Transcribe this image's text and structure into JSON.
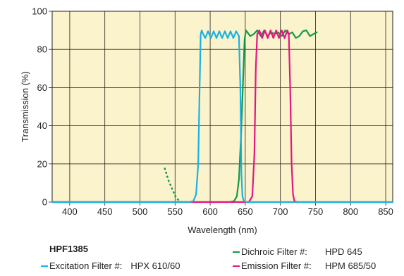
{
  "chart_data": {
    "type": "line",
    "xlabel": "Wavelength (nm)",
    "ylabel": "Transmission (%)",
    "xlim": [
      375,
      860
    ],
    "ylim": [
      0,
      100
    ],
    "xticks": [
      400,
      450,
      500,
      550,
      600,
      650,
      700,
      750,
      800,
      850
    ],
    "yticks": [
      0,
      20,
      40,
      60,
      80,
      100
    ],
    "grid": true,
    "background_color": "#fbf3cc",
    "grid_color": "#231f20",
    "series": [
      {
        "name": "Excitation Filter #: HPX 610/60",
        "color": "#1ab1e4",
        "x": [
          375,
          570,
          576,
          580,
          583,
          585,
          586.5,
          588,
          590,
          593,
          597,
          601,
          605,
          609,
          613,
          617,
          621,
          625,
          629,
          633,
          637,
          641,
          643,
          644.5,
          646,
          648,
          652,
          860
        ],
        "y": [
          0,
          0,
          0.5,
          4,
          20,
          60,
          88,
          90,
          88,
          86,
          89.5,
          86,
          89.5,
          86,
          89.5,
          86,
          89.5,
          86,
          89.5,
          86,
          89.5,
          87,
          60,
          15,
          3,
          0.5,
          0,
          0
        ]
      },
      {
        "name": "Dichroic Filter #: HPD 645",
        "color": "#159848",
        "dashed_segment": {
          "x": [
            535,
            541,
            547,
            551,
            555,
            559
          ],
          "y": [
            18,
            11,
            6,
            2.5,
            1,
            0
          ]
        },
        "x": [
          375,
          628,
          634,
          638,
          641,
          644,
          647,
          649,
          651,
          653,
          657,
          662,
          667,
          672,
          677,
          682,
          687,
          692,
          697,
          702,
          707,
          712,
          717,
          722,
          727,
          732,
          737,
          742,
          747,
          752
        ],
        "y": [
          0,
          0,
          0.5,
          3,
          12,
          35,
          65,
          85,
          90,
          89,
          87,
          88,
          90,
          87,
          90,
          87,
          89,
          88,
          89,
          87,
          90,
          88,
          89,
          86,
          87,
          89.5,
          90,
          87,
          88,
          89
        ]
      },
      {
        "name": "Emission Filter #: HPM 685/50",
        "color": "#e6157f",
        "x": [
          375,
          655,
          660,
          663,
          665,
          667,
          670,
          674,
          678,
          682,
          686,
          690,
          694,
          698,
          702,
          706,
          710,
          712,
          714,
          716,
          718,
          720,
          724,
          860
        ],
        "y": [
          0,
          0,
          3,
          25,
          70,
          88,
          90,
          86,
          90,
          86,
          90,
          86,
          90,
          86,
          90,
          86,
          90,
          88,
          60,
          20,
          4,
          0.5,
          0,
          0
        ]
      }
    ]
  },
  "legend": {
    "product_code": "HPF1385",
    "excitation": {
      "label": "Excitation Filter #:",
      "value": "HPX  610/60",
      "color": "#1ab1e4"
    },
    "dichroic": {
      "label": "Dichroic Filter #:",
      "value": "HPD  645",
      "color": "#159848"
    },
    "emission": {
      "label": "Emission Filter #:",
      "value": "HPM  685/50",
      "color": "#e6157f"
    }
  }
}
